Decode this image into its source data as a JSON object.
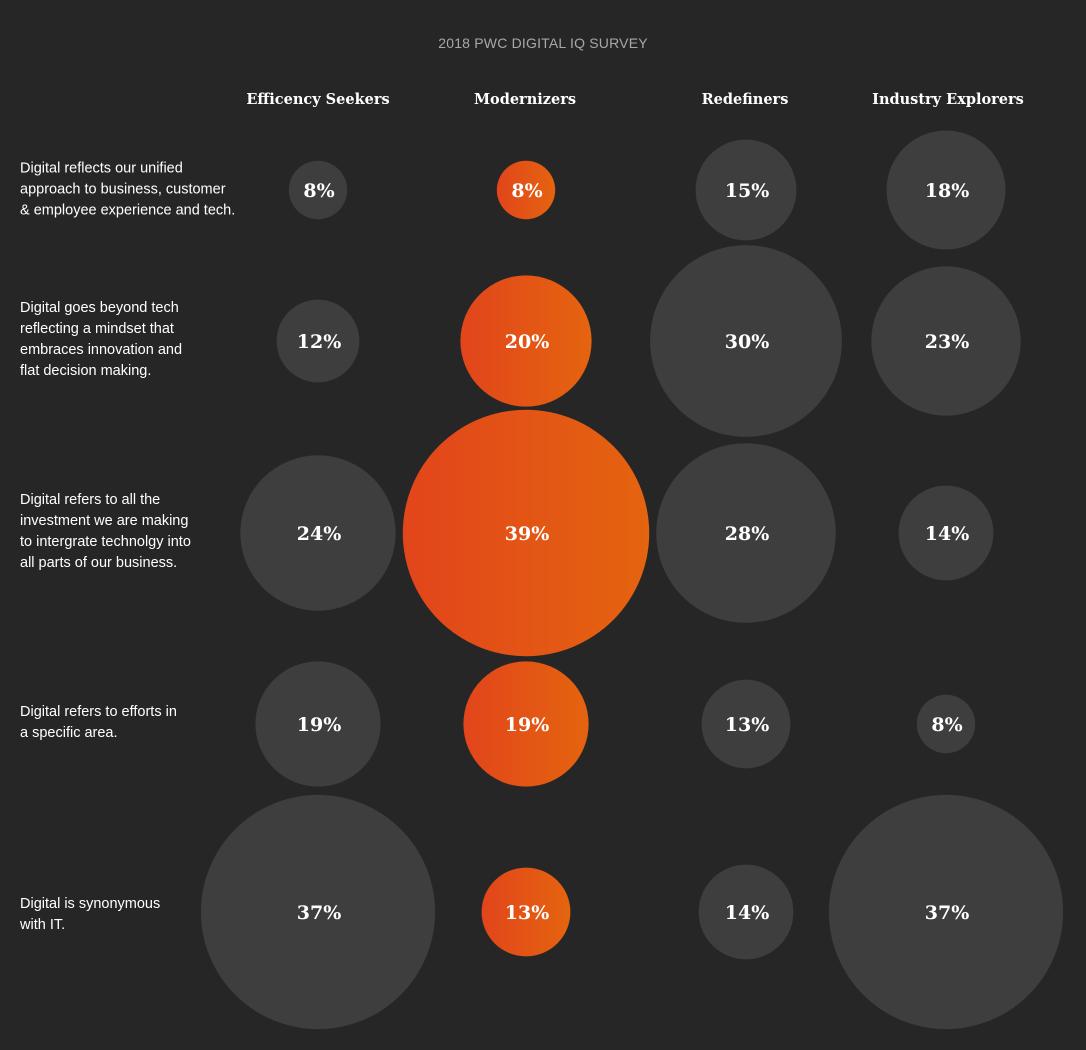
{
  "title": "2018 PWC DIGITAL IQ SURVEY",
  "colors": {
    "background": "#262626",
    "bubble_gray": "#3e3e3f",
    "accent_start": "#e2451b",
    "accent_end": "#e4640f"
  },
  "chart_data": {
    "type": "bubble",
    "title": "2018 PWC DIGITAL IQ SURVEY",
    "highlight_column": "Modernizers",
    "columns": [
      "Efficency Seekers",
      "Modernizers",
      "Redefiners",
      "Industry Explorers"
    ],
    "rows": [
      "Digital reflects our unified\napproach to business, customer\n& employee experience and tech.",
      "Digital goes beyond tech\nreflecting a mindset that\nembraces innovation and\nflat decision making.",
      "Digital refers to all the\ninvestment we are making\nto intergrate technolgy into\nall parts of our business.",
      "Digital refers to efforts in\na specific area.",
      "Digital is synonymous\nwith IT."
    ],
    "values": [
      [
        8,
        8,
        15,
        18
      ],
      [
        12,
        20,
        30,
        23
      ],
      [
        24,
        39,
        28,
        14
      ],
      [
        19,
        19,
        13,
        8
      ],
      [
        37,
        13,
        14,
        37
      ]
    ],
    "labels": [
      [
        "8%",
        "8%",
        "15%",
        "18%"
      ],
      [
        "12%",
        "20%",
        "30%",
        "23%"
      ],
      [
        "24%",
        "39%",
        "28%",
        "14%"
      ],
      [
        "19%",
        "19%",
        "13%",
        "8%"
      ],
      [
        "37%",
        "13%",
        "14%",
        "37%"
      ]
    ]
  }
}
